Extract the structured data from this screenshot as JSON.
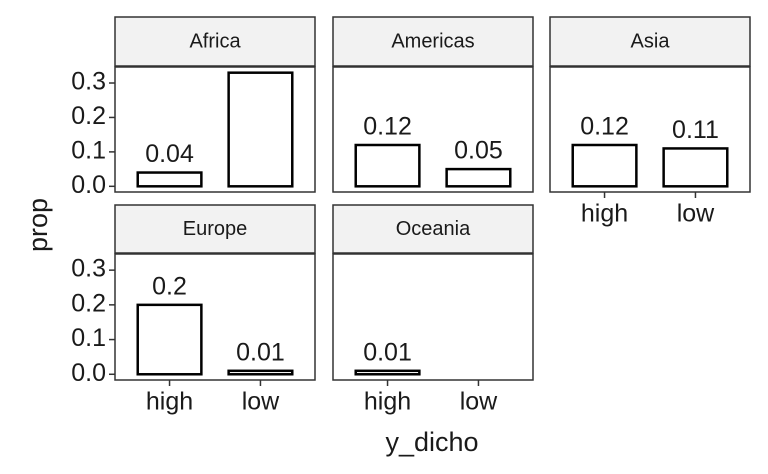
{
  "chart_data": {
    "type": "bar",
    "xlabel": "y_dicho",
    "ylabel": "prop",
    "categories": [
      "high",
      "low"
    ],
    "ylim": [
      -0.0165,
      0.3465
    ],
    "yticks": [
      {
        "value": 0,
        "label": "0.0"
      },
      0.1,
      0.2,
      0.3
    ],
    "color": "#ffffff",
    "edge_color": "#000000",
    "panels": [
      {
        "title": "Africa",
        "values": [
          0.04,
          0.33
        ],
        "value_labels": [
          "0.04",
          null
        ]
      },
      {
        "title": "Americas",
        "values": [
          0.12,
          0.05
        ]
      },
      {
        "title": "Asia",
        "values": [
          0.12,
          0.11
        ]
      },
      {
        "title": "Europe",
        "values": [
          0.2,
          0.01
        ]
      },
      {
        "title": "Oceania",
        "values": [
          0.01,
          null
        ]
      }
    ]
  }
}
